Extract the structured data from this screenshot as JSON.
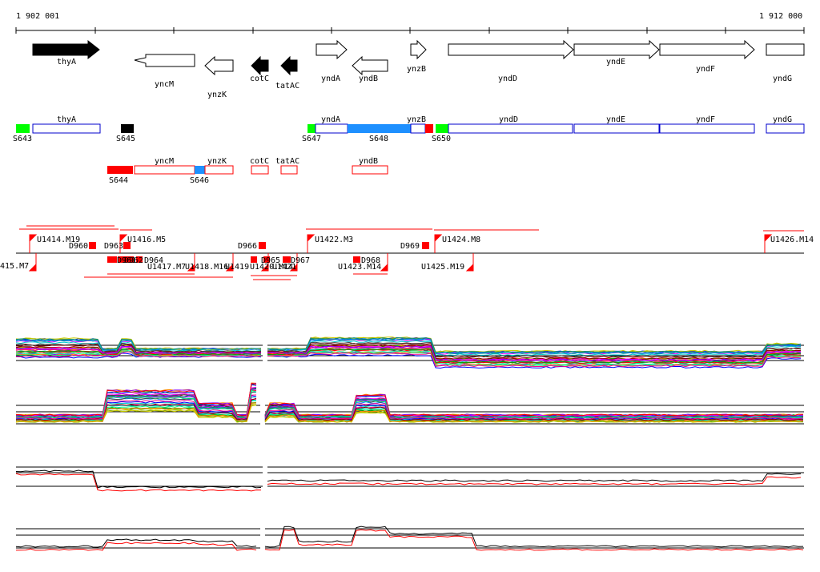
{
  "axis": {
    "start_label": "1 902 001",
    "end_label": "1 912 000",
    "start": 1902001,
    "end": 1912000
  },
  "colors": {
    "bg": "#ffffff",
    "gene_outline": "#000000",
    "blue_outline": "#0000cc",
    "red": "#ff0000",
    "green": "#00ff00",
    "cyan": "#1e90ff",
    "black": "#000000"
  },
  "genes_top": [
    {
      "name": "thyA",
      "strand": "+",
      "filled": true
    },
    {
      "name": "yncM",
      "strand": "-",
      "filled": false
    },
    {
      "name": "ynzK",
      "strand": "-",
      "filled": false
    },
    {
      "name": "cotC",
      "strand": "-",
      "filled": true
    },
    {
      "name": "tatAC",
      "strand": "-",
      "filled": true
    },
    {
      "name": "yndA",
      "strand": "+",
      "filled": false
    },
    {
      "name": "yndB",
      "strand": "-",
      "filled": false
    },
    {
      "name": "ynzB",
      "strand": "+",
      "filled": false
    },
    {
      "name": "yndD",
      "strand": "+",
      "filled": false
    },
    {
      "name": "yndE",
      "strand": "+",
      "filled": false
    },
    {
      "name": "yndF",
      "strand": "+",
      "filled": false
    },
    {
      "name": "yndG",
      "strand": "+",
      "filled": false
    }
  ],
  "segments_plus": [
    {
      "label": "S643",
      "color": "green"
    },
    {
      "label": "thyA",
      "color": "blue_outline"
    },
    {
      "label": "S645",
      "color": "black"
    },
    {
      "label": "S647",
      "color": "green"
    },
    {
      "label": "yndA",
      "color": "blue_outline"
    },
    {
      "label": "S648",
      "color": "cyan"
    },
    {
      "label": "ynzB",
      "color": "blue_outline"
    },
    {
      "label": "S650",
      "color": "green"
    },
    {
      "label": "yndD",
      "color": "blue_outline"
    },
    {
      "label": "yndE",
      "color": "blue_outline"
    },
    {
      "label": "yndF",
      "color": "blue_outline"
    },
    {
      "label": "yndG",
      "color": "blue_outline"
    }
  ],
  "segments_minus": [
    {
      "label": "S644",
      "color": "red"
    },
    {
      "label": "yncM",
      "color": "red_outline"
    },
    {
      "label": "S646",
      "color": "cyan"
    },
    {
      "label": "ynzK",
      "color": "red_outline"
    },
    {
      "label": "cotC",
      "color": "red_outline"
    },
    {
      "label": "tatAC",
      "color": "red_outline"
    },
    {
      "label": "yndB",
      "color": "red_outline"
    }
  ],
  "tu_labels_upper": [
    "U1414.M19",
    "D960",
    "D963",
    "U1416.M5",
    "D966",
    "U1422.M3",
    "D969",
    "U1424.M8",
    "U1426.M14"
  ],
  "tu_labels_lower": [
    "415.M7",
    "D961",
    "D962",
    "D964",
    "U1417.M7",
    "U1418.M16",
    "U1419",
    "U1420.M14",
    "U1421",
    "D965",
    "D967",
    "U1423.M14",
    "D968",
    "U1425.M19"
  ]
}
